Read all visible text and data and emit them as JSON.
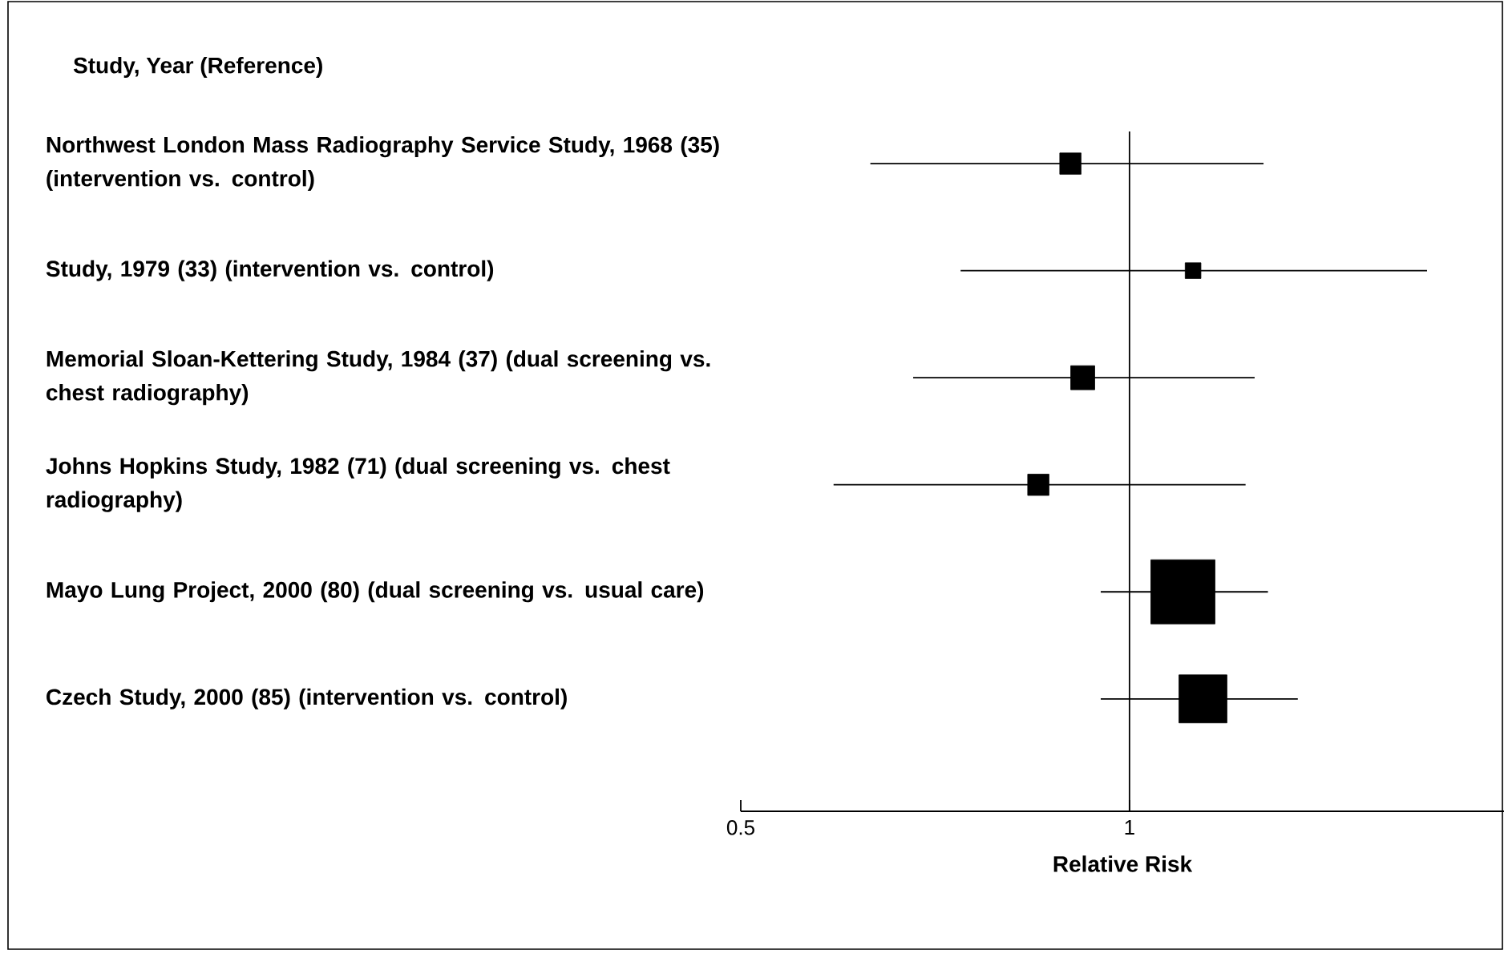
{
  "chart_data": {
    "type": "scatter",
    "orientation": "horizontal",
    "title": "Study, Year (Reference)",
    "xlabel": "Relative Risk",
    "categories": [
      "Northwest London Mass Radiography Service Study, 1968 (35) (intervention vs. control)",
      "Study, 1979 (33) (intervention vs. control)",
      "Memorial Sloan-Kettering Study, 1984 (37) (dual screening vs. chest radiography)",
      "Johns Hopkins Study, 1982 (71) (dual screening vs. chest radiography)",
      "Mayo Lung Project, 2000 (80) (dual screening vs. usual care)",
      "Czech Study, 2000 (85) (intervention vs. control)"
    ],
    "values": [
      0.9,
      1.12,
      0.92,
      0.85,
      1.1,
      1.14
    ],
    "errors": [
      [
        0.63,
        1.27
      ],
      [
        0.74,
        1.7
      ],
      [
        0.68,
        1.25
      ],
      [
        0.59,
        1.23
      ],
      [
        0.95,
        1.28
      ],
      [
        0.95,
        1.35
      ]
    ],
    "sizes": [
      0.11,
      0.06,
      0.14,
      0.11,
      1,
      0.56
    ],
    "color": "#000000",
    "marker": "square",
    "log": "x",
    "xlim": [
      0.5,
      1.95
    ],
    "xticks": [
      0.5,
      1
    ],
    "ref_lines": [
      {
        "axis": "x",
        "value": 1
      }
    ]
  }
}
